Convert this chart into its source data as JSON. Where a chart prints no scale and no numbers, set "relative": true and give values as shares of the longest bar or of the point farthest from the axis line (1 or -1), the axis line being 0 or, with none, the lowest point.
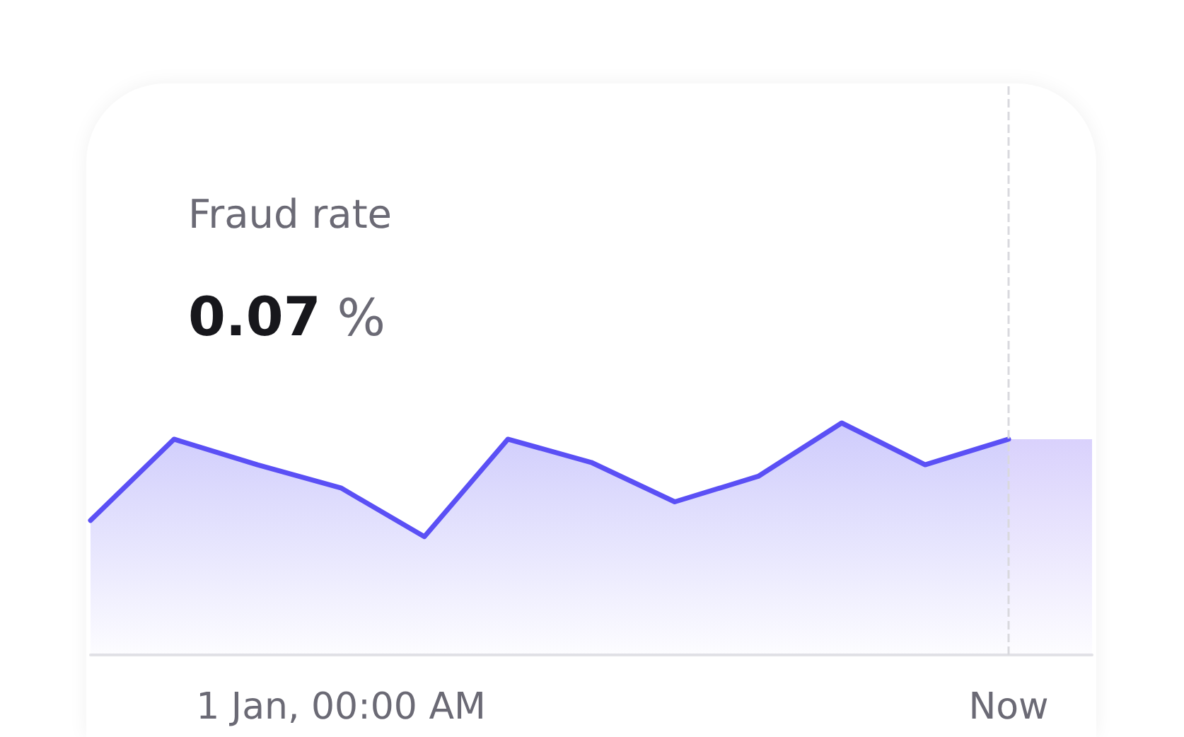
{
  "chart_data": {
    "type": "area",
    "title": "Fraud rate",
    "subtitle": "0.07 %",
    "relative": true,
    "tick_labels": "x",
    "marker": "none",
    "categories": [
      null,
      null,
      null,
      "1 Jan, 00:00 AM",
      null,
      null,
      null,
      null,
      null,
      null,
      null,
      "Now",
      null
    ],
    "series": [
      {
        "color": "#5b50f5",
        "line_style": "solid",
        "values": [
          0.58,
          0.93,
          0.82,
          0.72,
          0.51,
          0.93,
          0.83,
          0.66,
          0.77,
          1,
          0.82,
          0.93,
          null
        ]
      },
      {
        "color": "#c9befb",
        "line_style": "none",
        "values": [
          null,
          null,
          null,
          null,
          null,
          null,
          null,
          null,
          null,
          null,
          null,
          0.93,
          0.93
        ]
      }
    ],
    "ref_lines": [
      {
        "axis": "x",
        "value": "Now",
        "color": "#d9d9de",
        "line_style": "dashed"
      }
    ]
  }
}
